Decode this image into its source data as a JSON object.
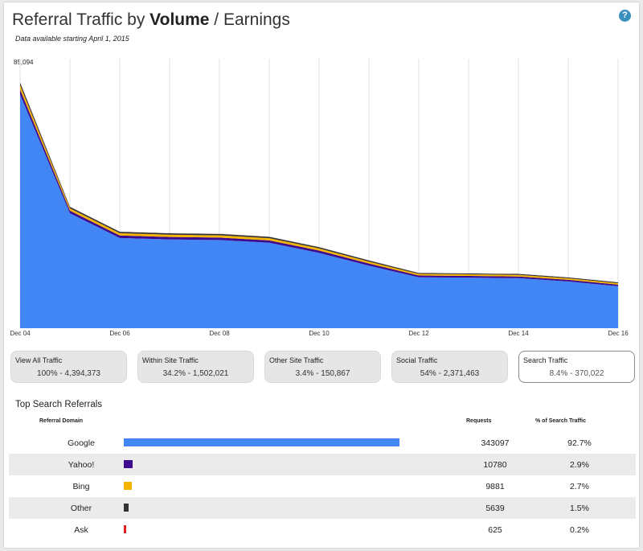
{
  "header": {
    "title_prefix": "Referral Traffic by ",
    "title_bold": "Volume",
    "title_suffix": " / Earnings",
    "subtitle": "Data available starting April 1, 2015",
    "help_icon": "?"
  },
  "chart_data": {
    "type": "area",
    "stacked": true,
    "ymax_label": "85,094",
    "ylim": [
      0,
      85094
    ],
    "x": [
      "Dec 04",
      "Dec 05",
      "Dec 06",
      "Dec 07",
      "Dec 08",
      "Dec 09",
      "Dec 10",
      "Dec 11",
      "Dec 12",
      "Dec 13",
      "Dec 14",
      "Dec 15",
      "Dec 16"
    ],
    "tick_labels": [
      "Dec 04",
      "Dec 06",
      "Dec 08",
      "Dec 10",
      "Dec 12",
      "Dec 14",
      "Dec 16"
    ],
    "series": [
      {
        "name": "Google",
        "color": "#4285f4",
        "values": [
          78500,
          38600,
          30300,
          29800,
          29600,
          28700,
          25300,
          21000,
          17100,
          17000,
          16800,
          15700,
          14100
        ]
      },
      {
        "name": "Yahoo!",
        "color": "#3e0a8f",
        "values": [
          1600,
          860,
          830,
          820,
          820,
          790,
          770,
          700,
          580,
          570,
          570,
          540,
          520
        ]
      },
      {
        "name": "Bing",
        "color": "#f5b400",
        "values": [
          1500,
          800,
          780,
          770,
          770,
          740,
          720,
          650,
          540,
          530,
          530,
          500,
          480
        ]
      },
      {
        "name": "Other",
        "color": "#333333",
        "values": [
          900,
          500,
          480,
          470,
          470,
          450,
          440,
          400,
          330,
          320,
          320,
          310,
          300
        ]
      },
      {
        "name": "Ask",
        "color": "#e8c8c8",
        "values": [
          250,
          120,
          110,
          110,
          110,
          100,
          100,
          90,
          80,
          80,
          80,
          75,
          70
        ]
      }
    ],
    "grid": "vertical",
    "background": "#ffffff"
  },
  "tiles": [
    {
      "label": "View All Traffic",
      "value": "100% - 4,394,373",
      "active": false
    },
    {
      "label": "Within Site Traffic",
      "value": "34.2% - 1,502,021",
      "active": false
    },
    {
      "label": "Other Site Traffic",
      "value": "3.4% - 150,867",
      "active": false
    },
    {
      "label": "Social Traffic",
      "value": "54% - 2,371,463",
      "active": false
    },
    {
      "label": "Search Traffic",
      "value": "8.4% - 370,022",
      "active": true
    }
  ],
  "referrals": {
    "title": "Top Search Referrals",
    "headers": {
      "domain": "Referral Domain",
      "requests": "Requests",
      "percent": "% of Search Traffic"
    },
    "rows": [
      {
        "domain": "Google",
        "requests": "343097",
        "percent": "92.7%",
        "share": 0.927,
        "color": "#4285f4"
      },
      {
        "domain": "Yahoo!",
        "requests": "10780",
        "percent": "2.9%",
        "share": 0.029,
        "color": "#3e0a8f"
      },
      {
        "domain": "Bing",
        "requests": "9881",
        "percent": "2.7%",
        "share": 0.027,
        "color": "#f5b400"
      },
      {
        "domain": "Other",
        "requests": "5639",
        "percent": "1.5%",
        "share": 0.015,
        "color": "#333333"
      },
      {
        "domain": "Ask",
        "requests": "625",
        "percent": "0.2%",
        "share": 0.002,
        "color": "#e02020"
      }
    ]
  }
}
